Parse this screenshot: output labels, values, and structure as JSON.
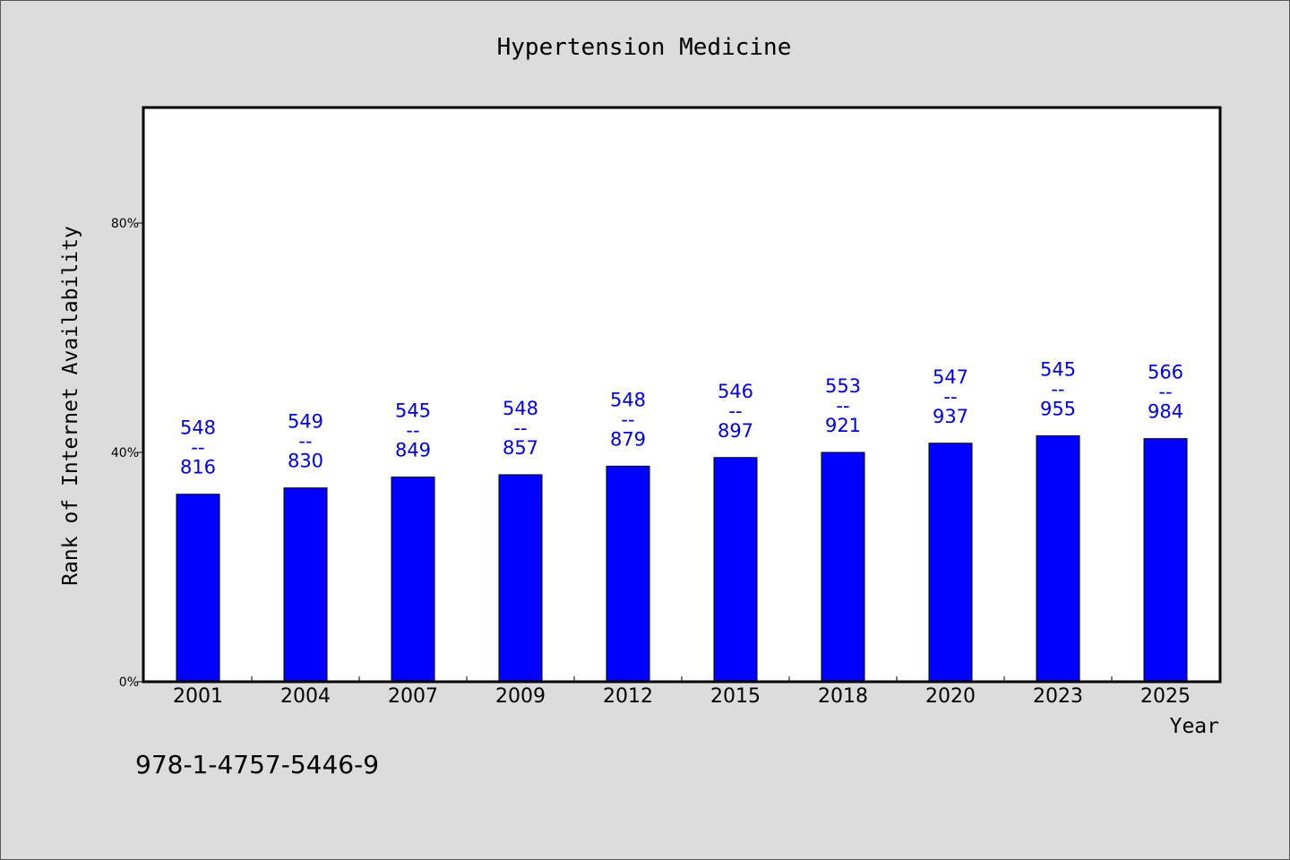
{
  "chart_data": {
    "type": "bar",
    "title": "Hypertension Medicine",
    "xlabel": "Year",
    "ylabel": "Rank of Internet Availability",
    "categories": [
      "2001",
      "2004",
      "2007",
      "2009",
      "2012",
      "2015",
      "2018",
      "2020",
      "2023",
      "2025"
    ],
    "values": [
      32.7,
      33.8,
      35.7,
      36.1,
      37.6,
      39.1,
      40.0,
      41.6,
      42.9,
      42.4
    ],
    "labels_top": [
      "548",
      "549",
      "545",
      "548",
      "548",
      "546",
      "553",
      "547",
      "545",
      "566"
    ],
    "labels_bottom": [
      "816",
      "830",
      "849",
      "857",
      "879",
      "897",
      "921",
      "937",
      "955",
      "984"
    ],
    "label_separator": "--",
    "ylim": [
      0,
      100
    ],
    "yticks": [
      0,
      40,
      80
    ],
    "ytick_labels": [
      "0%",
      "40%",
      "80%"
    ],
    "grid": false,
    "colors": {
      "bar": "#0000ff",
      "label": "#0000cc",
      "plot_bg": "#ffffff",
      "figure_bg": "#dcdcdc"
    }
  },
  "footer": {
    "isbn": "978-1-4757-5446-9"
  }
}
